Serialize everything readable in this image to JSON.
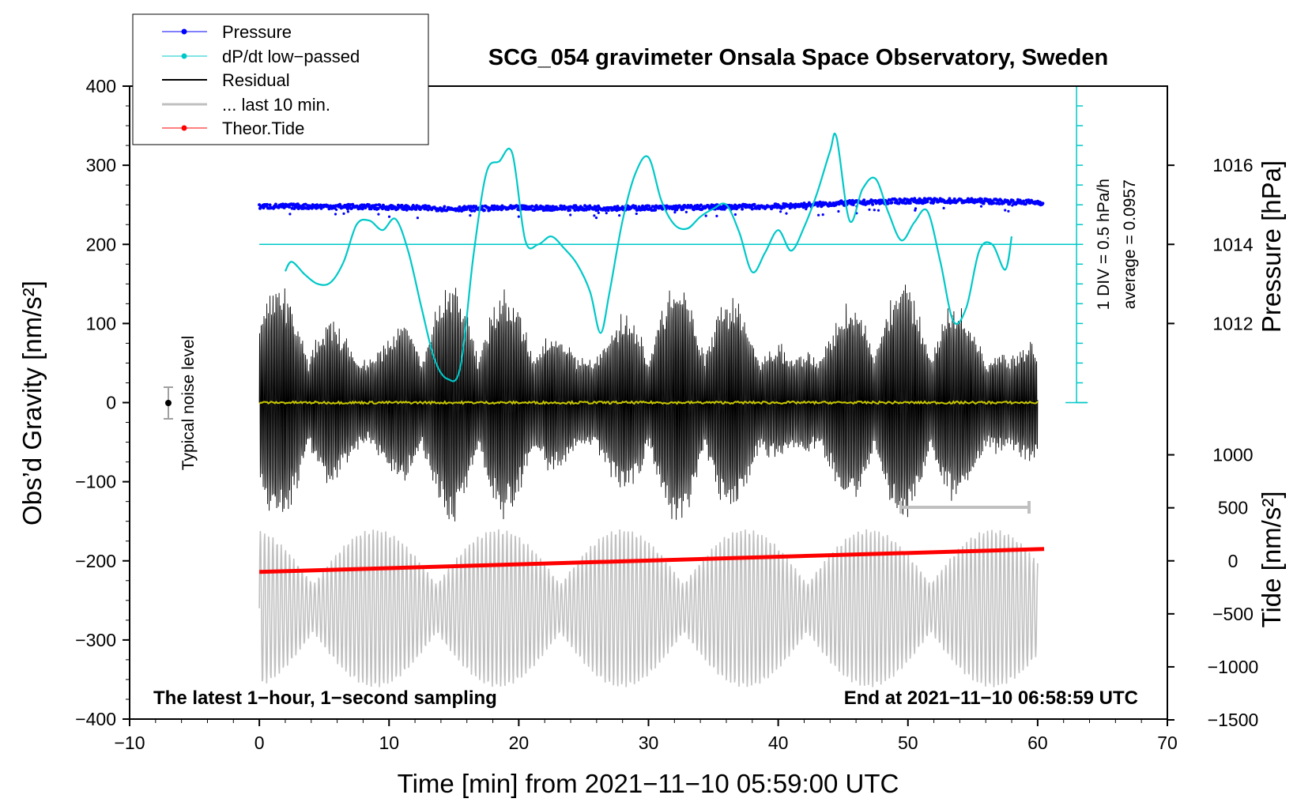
{
  "chart_data": {
    "type": "line",
    "title": "SCG_054 gravimeter Onsala Space Observatory, Sweden",
    "xlabel": "Time [min] from 2021−11−10 05:59:00 UTC",
    "xlim": [
      -10,
      70
    ],
    "x_ticks": [
      "−10",
      "0",
      "10",
      "20",
      "30",
      "40",
      "50",
      "60",
      "70"
    ],
    "ylabel": "Obs’d Gravity [nm/s²]",
    "ylim": [
      -400,
      400
    ],
    "y_ticks": [
      "−400",
      "−300",
      "−200",
      "−100",
      "0",
      "100",
      "200",
      "300",
      "400"
    ],
    "right_pressure_axis": {
      "label": "Pressure [hPa]",
      "ticks": [
        "1012",
        "1014",
        "1016"
      ],
      "gravity_at_1014": 200,
      "gravity_per_hPa": 50
    },
    "right_tide_axis": {
      "label": "Tide [nm/s²]",
      "ticks": [
        "−1500",
        "−1000",
        "−500",
        "0",
        "500",
        "1000"
      ],
      "gravity_at_0": -200,
      "gravity_per_500": 67
    },
    "legend": [
      "Pressure",
      "dP/dt low−passed",
      "Residual",
      "... last 10 min.",
      "Theor.Tide"
    ],
    "annotations": {
      "scale_div": "1 DIV = 0.5 hPa/h",
      "average": "average = 0.0957",
      "noise": "Typical noise level",
      "bottom_left": "The latest 1−hour, 1−second sampling",
      "bottom_right": "End at 2021−11−10 06:58:59 UTC"
    },
    "series": [
      {
        "name": "Pressure",
        "color": "#0000ff",
        "x": [
          0,
          5,
          10,
          15,
          20,
          25,
          30,
          35,
          40,
          45,
          50,
          55,
          60
        ],
        "y": [
          248,
          248,
          247,
          245,
          246,
          246,
          246,
          247,
          248,
          252,
          255,
          255,
          253
        ]
      },
      {
        "name": "dP/dt low−passed",
        "color": "#00c8c8",
        "x": [
          2,
          2.5,
          3.5,
          4.5,
          5.5,
          6.5,
          7.5,
          8.5,
          9.5,
          10.5,
          11.5,
          12.5,
          13.5,
          14.5,
          15.5,
          16.5,
          17.5,
          18.5,
          19.5,
          20.5,
          21.5,
          22.5,
          23.5,
          24.5,
          25.5,
          26.3,
          27,
          28,
          29,
          30,
          31,
          32,
          33,
          34,
          35,
          36,
          37,
          38,
          39,
          40,
          41,
          42,
          43,
          44,
          44.5,
          45.5,
          46.5,
          47.5,
          48.5,
          49.5,
          50.5,
          51.5,
          52.5,
          53.5,
          54.5,
          55.5,
          56.5,
          57.5,
          58
        ],
        "y": [
          166,
          178,
          162,
          150,
          152,
          178,
          225,
          230,
          218,
          232,
          190,
          120,
          55,
          30,
          45,
          185,
          290,
          305,
          315,
          205,
          200,
          210,
          195,
          175,
          140,
          88,
          140,
          230,
          290,
          310,
          255,
          225,
          220,
          235,
          245,
          250,
          215,
          165,
          190,
          218,
          192,
          222,
          265,
          318,
          335,
          230,
          270,
          283,
          240,
          205,
          228,
          242,
          178,
          103,
          120,
          192,
          200,
          168,
          210
        ]
      },
      {
        "name": "Residual",
        "color": "#000000",
        "envelope_approx": [
          -160,
          160
        ]
      },
      {
        "name": "... last 10 min.",
        "color": "#c0c0c0",
        "envelope_approx": [
          -360,
          -160
        ]
      },
      {
        "name": "Theor.Tide",
        "color": "#ff0000",
        "x": [
          0,
          60.5
        ],
        "y": [
          -214,
          -185
        ]
      },
      {
        "name": "Mean",
        "color": "#c8c800",
        "x": [
          0,
          60
        ],
        "y": [
          0,
          0
        ]
      }
    ]
  }
}
